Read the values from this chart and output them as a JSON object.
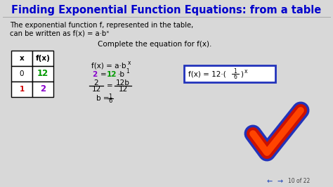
{
  "title": "Finding Exponential Function Equations: from a table",
  "title_color": "#0000cc",
  "bg_color": "#d8d8d8",
  "subtitle_line1": "The exponential function f, represented in the table,",
  "subtitle_line2": "can be written as f(x) = a·bˣ",
  "complete_text": "Complete the equation for f(x).",
  "box_color": "#2233bb",
  "footer_text": "10 of 22"
}
